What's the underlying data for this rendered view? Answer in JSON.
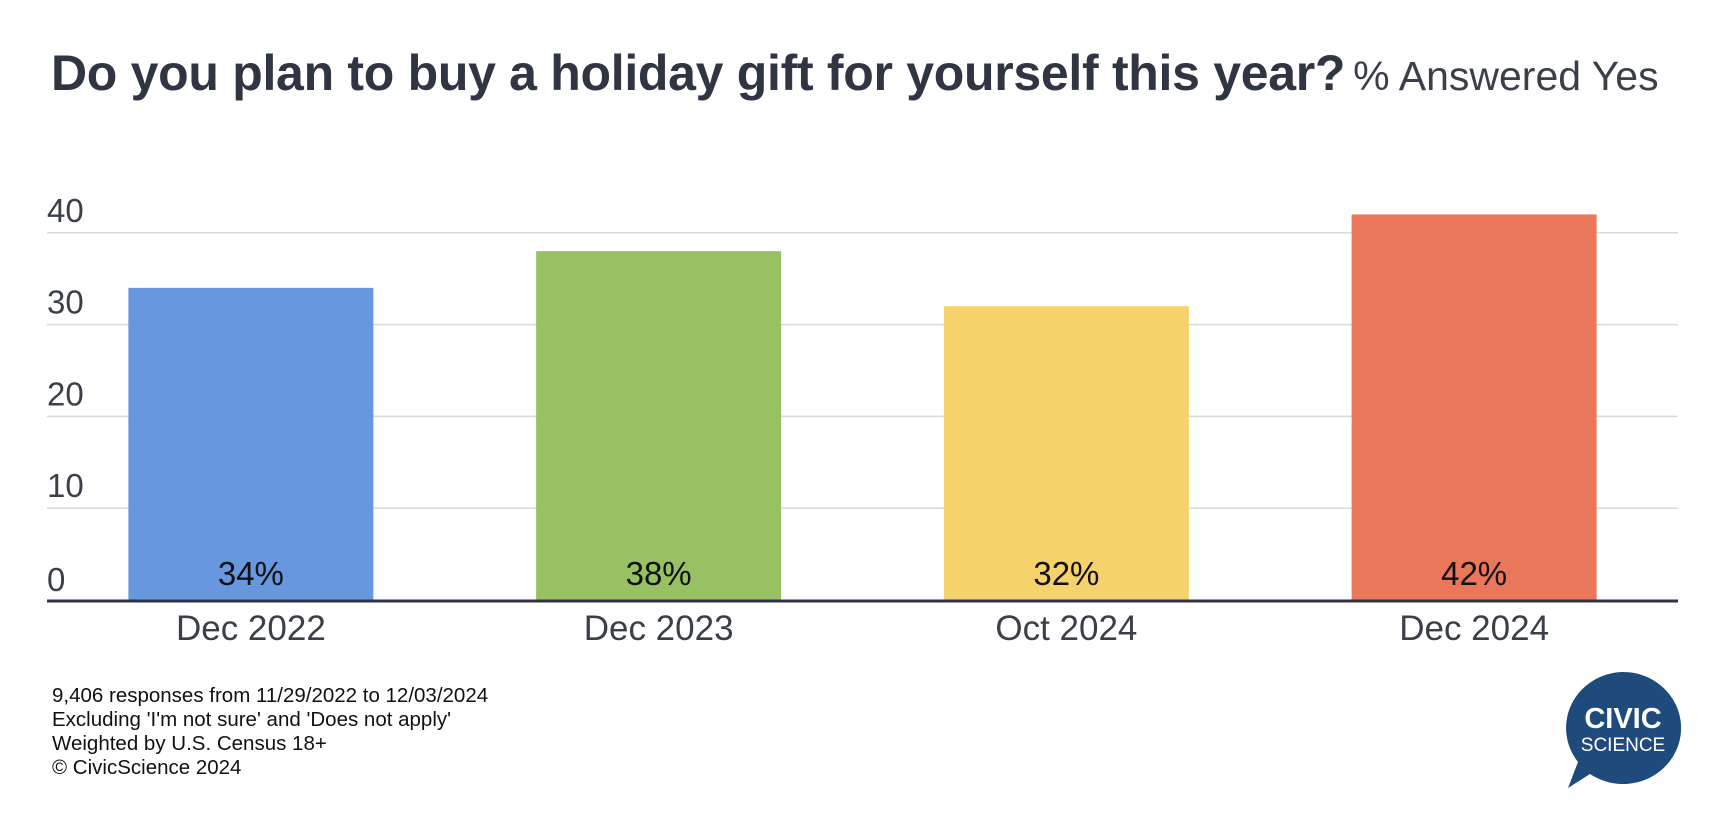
{
  "title": {
    "main": "Do you plan to buy a holiday gift for yourself this year?",
    "subtitle": "% Answered Yes"
  },
  "chart_data": {
    "type": "bar",
    "categories": [
      "Dec 2022",
      "Dec 2023",
      "Oct 2024",
      "Dec 2024"
    ],
    "values": [
      34,
      38,
      32,
      42
    ],
    "data_labels": [
      "34%",
      "38%",
      "32%",
      "42%"
    ],
    "colors": [
      "#6797df",
      "#98c163",
      "#f5d26b",
      "#ea775a"
    ],
    "y_ticks": [
      0,
      10,
      20,
      30,
      40
    ],
    "ylim": [
      0,
      43
    ],
    "grid": true,
    "legend": "none",
    "title": "Do you plan to buy a holiday gift for yourself this year?",
    "xlabel": "",
    "ylabel": ""
  },
  "footnotes": [
    "9,406 responses from 11/29/2022 to 12/03/2024",
    "Excluding 'I'm not sure' and 'Does not apply'",
    "Weighted by U.S. Census 18+",
    "© CivicScience 2024"
  ],
  "logo": {
    "line1": "CIVIC",
    "line2": "SCIENCE",
    "color": "#1f4a7c"
  }
}
